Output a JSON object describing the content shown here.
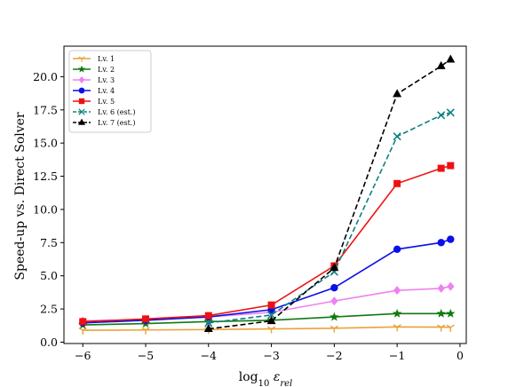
{
  "chart_data": {
    "type": "line",
    "xlabel": "log10 ε_rel",
    "xlabel_parts": {
      "base": "log",
      "sub": "10",
      "sym": "ε",
      "symsub": "rel"
    },
    "ylabel": "Speed-up vs. Direct Solver",
    "xlim": [
      -6.3,
      0.1
    ],
    "ylim": [
      -0.1,
      22.3
    ],
    "x_ticks": [
      -6,
      -5,
      -4,
      -3,
      -2,
      -1,
      0
    ],
    "x_tick_labels": [
      "−6",
      "−5",
      "−4",
      "−3",
      "−2",
      "−1",
      "0"
    ],
    "y_ticks": [
      0,
      2.5,
      5,
      7.5,
      10,
      12.5,
      15,
      17.5,
      20
    ],
    "y_tick_labels": [
      "0.0",
      "2.5",
      "5.0",
      "7.5",
      "10.0",
      "12.5",
      "15.0",
      "17.5",
      "20.0"
    ],
    "grid": false,
    "legend_position": "top-left",
    "series": [
      {
        "name": "Lv. 1",
        "color": "#e8a33a",
        "marker": "tri_down",
        "dashed": false,
        "x": [
          -6,
          -5,
          -4,
          -3,
          -2,
          -1,
          -0.3,
          -0.15
        ],
        "y": [
          0.9,
          0.92,
          0.95,
          1.0,
          1.05,
          1.15,
          1.13,
          1.12
        ]
      },
      {
        "name": "Lv. 2",
        "color": "#107a10",
        "marker": "star",
        "dashed": false,
        "x": [
          -6,
          -5,
          -4,
          -3,
          -2,
          -1,
          -0.3,
          -0.15
        ],
        "y": [
          1.3,
          1.4,
          1.55,
          1.65,
          1.9,
          2.15,
          2.15,
          2.15
        ]
      },
      {
        "name": "Lv. 3",
        "color": "#ee82ee",
        "marker": "diamond",
        "dashed": false,
        "x": [
          -6,
          -5,
          -4,
          -3,
          -2,
          -1,
          -0.3,
          -0.15
        ],
        "y": [
          1.6,
          1.7,
          1.9,
          2.25,
          3.1,
          3.9,
          4.05,
          4.2
        ]
      },
      {
        "name": "Lv. 4",
        "color": "#0a10e8",
        "marker": "circle",
        "dashed": false,
        "x": [
          -6,
          -5,
          -4,
          -3,
          -2,
          -1,
          -0.3,
          -0.15
        ],
        "y": [
          1.45,
          1.65,
          1.9,
          2.45,
          4.1,
          7.0,
          7.5,
          7.75
        ]
      },
      {
        "name": "Lv. 5",
        "color": "#ee1111",
        "marker": "square",
        "dashed": false,
        "x": [
          -6,
          -5,
          -4,
          -3,
          -2,
          -1,
          -0.3,
          -0.15
        ],
        "y": [
          1.55,
          1.75,
          2.0,
          2.8,
          5.75,
          11.95,
          13.1,
          13.3
        ]
      },
      {
        "name": "Lv. 6 (est.)",
        "color": "#108080",
        "marker": "x",
        "dashed": true,
        "x": [
          -4,
          -3,
          -2,
          -1,
          -0.3,
          -0.15
        ],
        "y": [
          1.45,
          2.05,
          5.3,
          15.5,
          17.1,
          17.3
        ]
      },
      {
        "name": "Lv. 7 (est.)",
        "color": "#000000",
        "marker": "triangle_up",
        "dashed": true,
        "x": [
          -4,
          -3,
          -2,
          -1,
          -0.3,
          -0.15
        ],
        "y": [
          1.0,
          1.6,
          5.6,
          18.7,
          20.8,
          21.3
        ]
      }
    ]
  }
}
